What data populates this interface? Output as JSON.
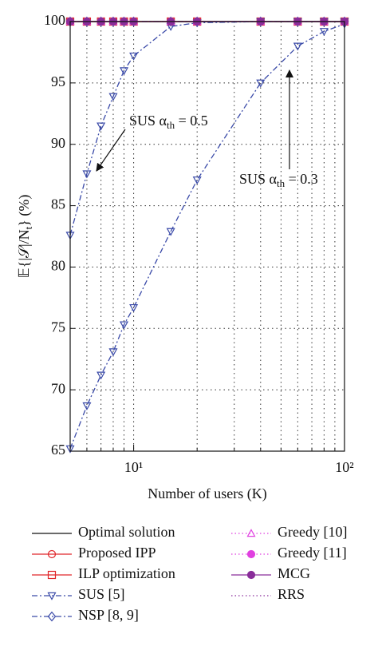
{
  "chart_data": {
    "type": "line",
    "x_label": "Number of users (K)",
    "y_label": {
      "main": "𝔼{|𝒮|/N",
      "sub": "t",
      "end": "} (%)"
    },
    "x": [
      5,
      6,
      7,
      8,
      9,
      10,
      15,
      20,
      40,
      60,
      80,
      100
    ],
    "xlim": [
      5,
      100
    ],
    "ylim": [
      65,
      100
    ],
    "x_log": true,
    "xticks": [
      {
        "value": 10,
        "label": "10¹"
      },
      {
        "value": 100,
        "label": "10²"
      }
    ],
    "xminorticks": [
      6,
      7,
      8,
      9,
      20,
      30,
      40,
      50,
      60,
      70,
      80,
      90
    ],
    "yticks": [
      65,
      70,
      75,
      80,
      85,
      90,
      95,
      100
    ],
    "grid": true,
    "annotations": [
      {
        "text": "SUS α",
        "sub": "th",
        "rest": " = 0.5"
      },
      {
        "text": "SUS α",
        "sub": "th",
        "rest": " = 0.3"
      }
    ],
    "series": [
      {
        "name": "Optimal solution",
        "color": "#111111",
        "linestyle": "solid",
        "marker": "none",
        "values": [
          100,
          100,
          100,
          100,
          100,
          100,
          100,
          100,
          100,
          100,
          100,
          100
        ]
      },
      {
        "name": "Proposed IPP",
        "color": "#e0262a",
        "linestyle": "solid",
        "marker": "circle",
        "filled": false,
        "values": [
          100,
          100,
          100,
          100,
          100,
          100,
          100,
          100,
          100,
          100,
          100,
          100
        ]
      },
      {
        "name": "ILP optimization",
        "color": "#e0262a",
        "linestyle": "solid",
        "marker": "square",
        "filled": false,
        "values": [
          100,
          100,
          100,
          100,
          100,
          100,
          100,
          100,
          100,
          100,
          100,
          100
        ]
      },
      {
        "name": "SUS [5]",
        "color": "#3a4aa8",
        "linestyle": "dashdot",
        "marker": "triangle-down",
        "filled": false,
        "values": [
          82.6,
          87.6,
          91.5,
          93.9,
          96.0,
          97.2,
          99.6,
          99.9,
          100,
          100,
          100,
          100
        ]
      },
      {
        "color": "#3a4aa8",
        "linestyle": "dashdot",
        "marker": "triangle-down",
        "filled": false,
        "values": [
          65.2,
          68.7,
          71.2,
          73.1,
          75.3,
          76.7,
          82.9,
          87.1,
          95.0,
          98.0,
          99.2,
          99.8
        ]
      },
      {
        "name": "NSP [8, 9]",
        "color": "#3a4aa8",
        "linestyle": "dashdot",
        "marker": "diamond",
        "filled": false,
        "values": [
          100,
          100,
          100,
          100,
          100,
          100,
          100,
          100,
          100,
          100,
          100,
          100
        ]
      },
      {
        "name": "Greedy [10]",
        "color": "#e040e0",
        "linestyle": "dotted",
        "marker": "triangle-up",
        "filled": false,
        "values": [
          100,
          100,
          100,
          100,
          100,
          100,
          100,
          100,
          100,
          100,
          100,
          100
        ]
      },
      {
        "name": "Greedy [11]",
        "color": "#e040e0",
        "linestyle": "dotted",
        "marker": "circle",
        "filled": true,
        "values": [
          100,
          100,
          100,
          100,
          100,
          100,
          100,
          100,
          100,
          100,
          100,
          100
        ]
      },
      {
        "name": "MCG",
        "color": "#8a2d9a",
        "linestyle": "solid",
        "marker": "circle",
        "filled": true,
        "values": [
          100,
          100,
          100,
          100,
          100,
          100,
          100,
          100,
          100,
          100,
          100,
          100
        ]
      },
      {
        "name": "RRS",
        "color": "#8a2d9a",
        "linestyle": "dotted",
        "marker": "none",
        "values": [
          100,
          100,
          100,
          100,
          100,
          100,
          100,
          100,
          100,
          100,
          100,
          100
        ]
      }
    ]
  }
}
